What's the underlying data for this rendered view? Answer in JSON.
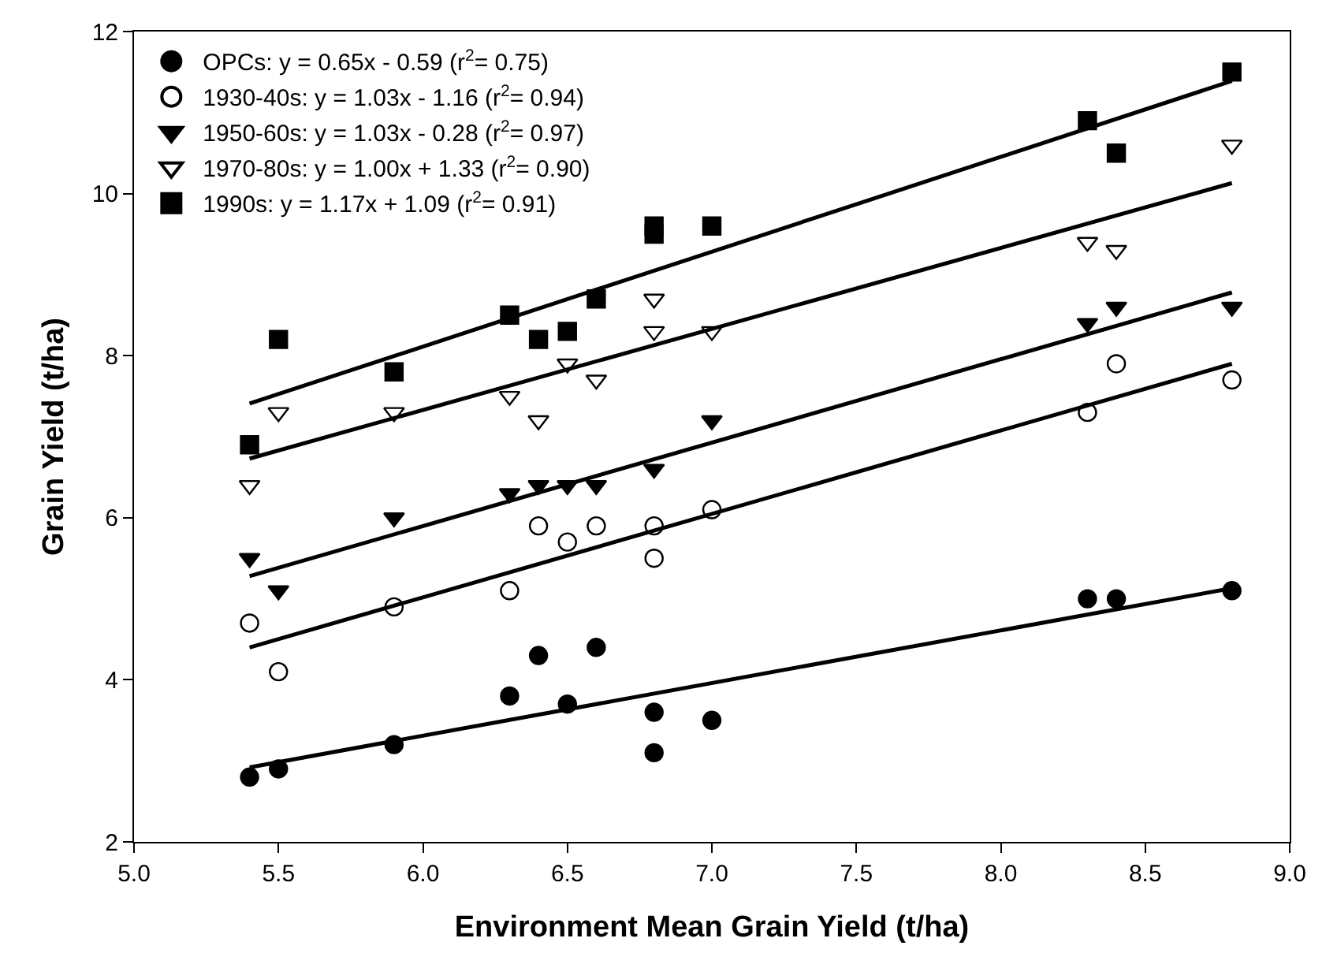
{
  "chart_data": {
    "type": "scatter",
    "xlabel": "Environment Mean Grain Yield (t/ha)",
    "ylabel": "Grain Yield (t/ha)",
    "xlim": [
      5.0,
      9.0
    ],
    "xticks": [
      {
        "value": 5.0,
        "label": "5.0"
      },
      {
        "value": 5.5,
        "label": "5.5"
      },
      {
        "value": 6.0,
        "label": "6.0"
      },
      {
        "value": 6.5,
        "label": "6.5"
      },
      {
        "value": 7.0,
        "label": "7.0"
      },
      {
        "value": 7.5,
        "label": "7.5"
      },
      {
        "value": 8.0,
        "label": "8.0"
      },
      {
        "value": 8.5,
        "label": "8.5"
      },
      {
        "value": 9.0,
        "label": "9.0"
      }
    ],
    "ylim": [
      2,
      12
    ],
    "yticks": [
      2,
      4,
      6,
      8,
      10,
      12
    ],
    "legend": "top left",
    "series": [
      {
        "name": "OPCs: y = 0.65x - 0.59 (r$^{2}$= 0.75)",
        "color": "#000000",
        "marker": "circle",
        "x": [
          5.4,
          5.5,
          5.9,
          6.3,
          6.4,
          6.5,
          6.6,
          6.8,
          6.8,
          7.0,
          8.3,
          8.4,
          8.8
        ],
        "values": [
          2.8,
          2.9,
          3.2,
          3.8,
          4.3,
          3.7,
          4.4,
          3.6,
          3.1,
          3.5,
          5.0,
          5.0,
          5.1
        ]
      },
      {
        "name": "1930-40s: y = 1.03x - 1.16 (r$^{2}$= 0.94)",
        "color": "#ffffff",
        "marker": "circle",
        "x": [
          5.4,
          5.5,
          5.9,
          6.3,
          6.4,
          6.5,
          6.6,
          6.8,
          6.8,
          7.0,
          8.3,
          8.4,
          8.8
        ],
        "values": [
          4.7,
          4.1,
          4.9,
          5.1,
          5.9,
          5.7,
          5.9,
          5.9,
          5.5,
          6.1,
          7.3,
          7.9,
          7.7
        ]
      },
      {
        "name": "1950-60s: y = 1.03x - 0.28 (r$^{2}$= 0.97)",
        "color": "#000000",
        "marker": "triangle",
        "x": [
          5.4,
          5.5,
          5.9,
          6.3,
          6.4,
          6.5,
          6.6,
          6.8,
          7.0,
          8.3,
          8.4,
          8.8
        ],
        "values": [
          5.5,
          5.1,
          6.0,
          6.3,
          6.4,
          6.4,
          6.4,
          6.6,
          7.2,
          8.4,
          8.6,
          8.6
        ]
      },
      {
        "name": "1970-80s: y = 1.00x + 1.33 (r$^{2}$= 0.90)",
        "color": "#ffffff",
        "marker": "triangle",
        "x": [
          5.4,
          5.5,
          5.9,
          6.3,
          6.4,
          6.5,
          6.6,
          6.8,
          6.8,
          7.0,
          8.3,
          8.4,
          8.8
        ],
        "values": [
          6.4,
          7.3,
          7.3,
          7.5,
          7.2,
          7.9,
          7.7,
          8.7,
          8.3,
          8.3,
          9.4,
          9.3,
          10.6
        ]
      },
      {
        "name": "1990s: y = 1.17x + 1.09 (r$^{2}$= 0.91)",
        "color": "#000000",
        "marker": "square",
        "x": [
          5.4,
          5.5,
          5.9,
          6.3,
          6.4,
          6.5,
          6.6,
          6.8,
          6.8,
          7.0,
          8.3,
          8.4,
          8.8
        ],
        "values": [
          6.9,
          8.2,
          7.8,
          8.5,
          8.2,
          8.3,
          8.7,
          9.6,
          9.5,
          9.6,
          10.9,
          10.5,
          11.5
        ]
      },
      {
        "type": "line",
        "color": "#000000",
        "x": [
          5.4,
          8.8
        ],
        "values": [
          2.92,
          5.13
        ]
      },
      {
        "type": "line",
        "color": "#000000",
        "x": [
          5.4,
          8.8
        ],
        "values": [
          4.4,
          7.9
        ]
      },
      {
        "type": "line",
        "color": "#000000",
        "x": [
          5.4,
          8.8
        ],
        "values": [
          5.28,
          8.78
        ]
      },
      {
        "type": "line",
        "color": "#000000",
        "x": [
          5.4,
          8.8
        ],
        "values": [
          6.73,
          10.13
        ]
      },
      {
        "type": "line",
        "color": "#000000",
        "x": [
          5.4,
          8.8
        ],
        "values": [
          7.41,
          11.39
        ]
      }
    ]
  }
}
